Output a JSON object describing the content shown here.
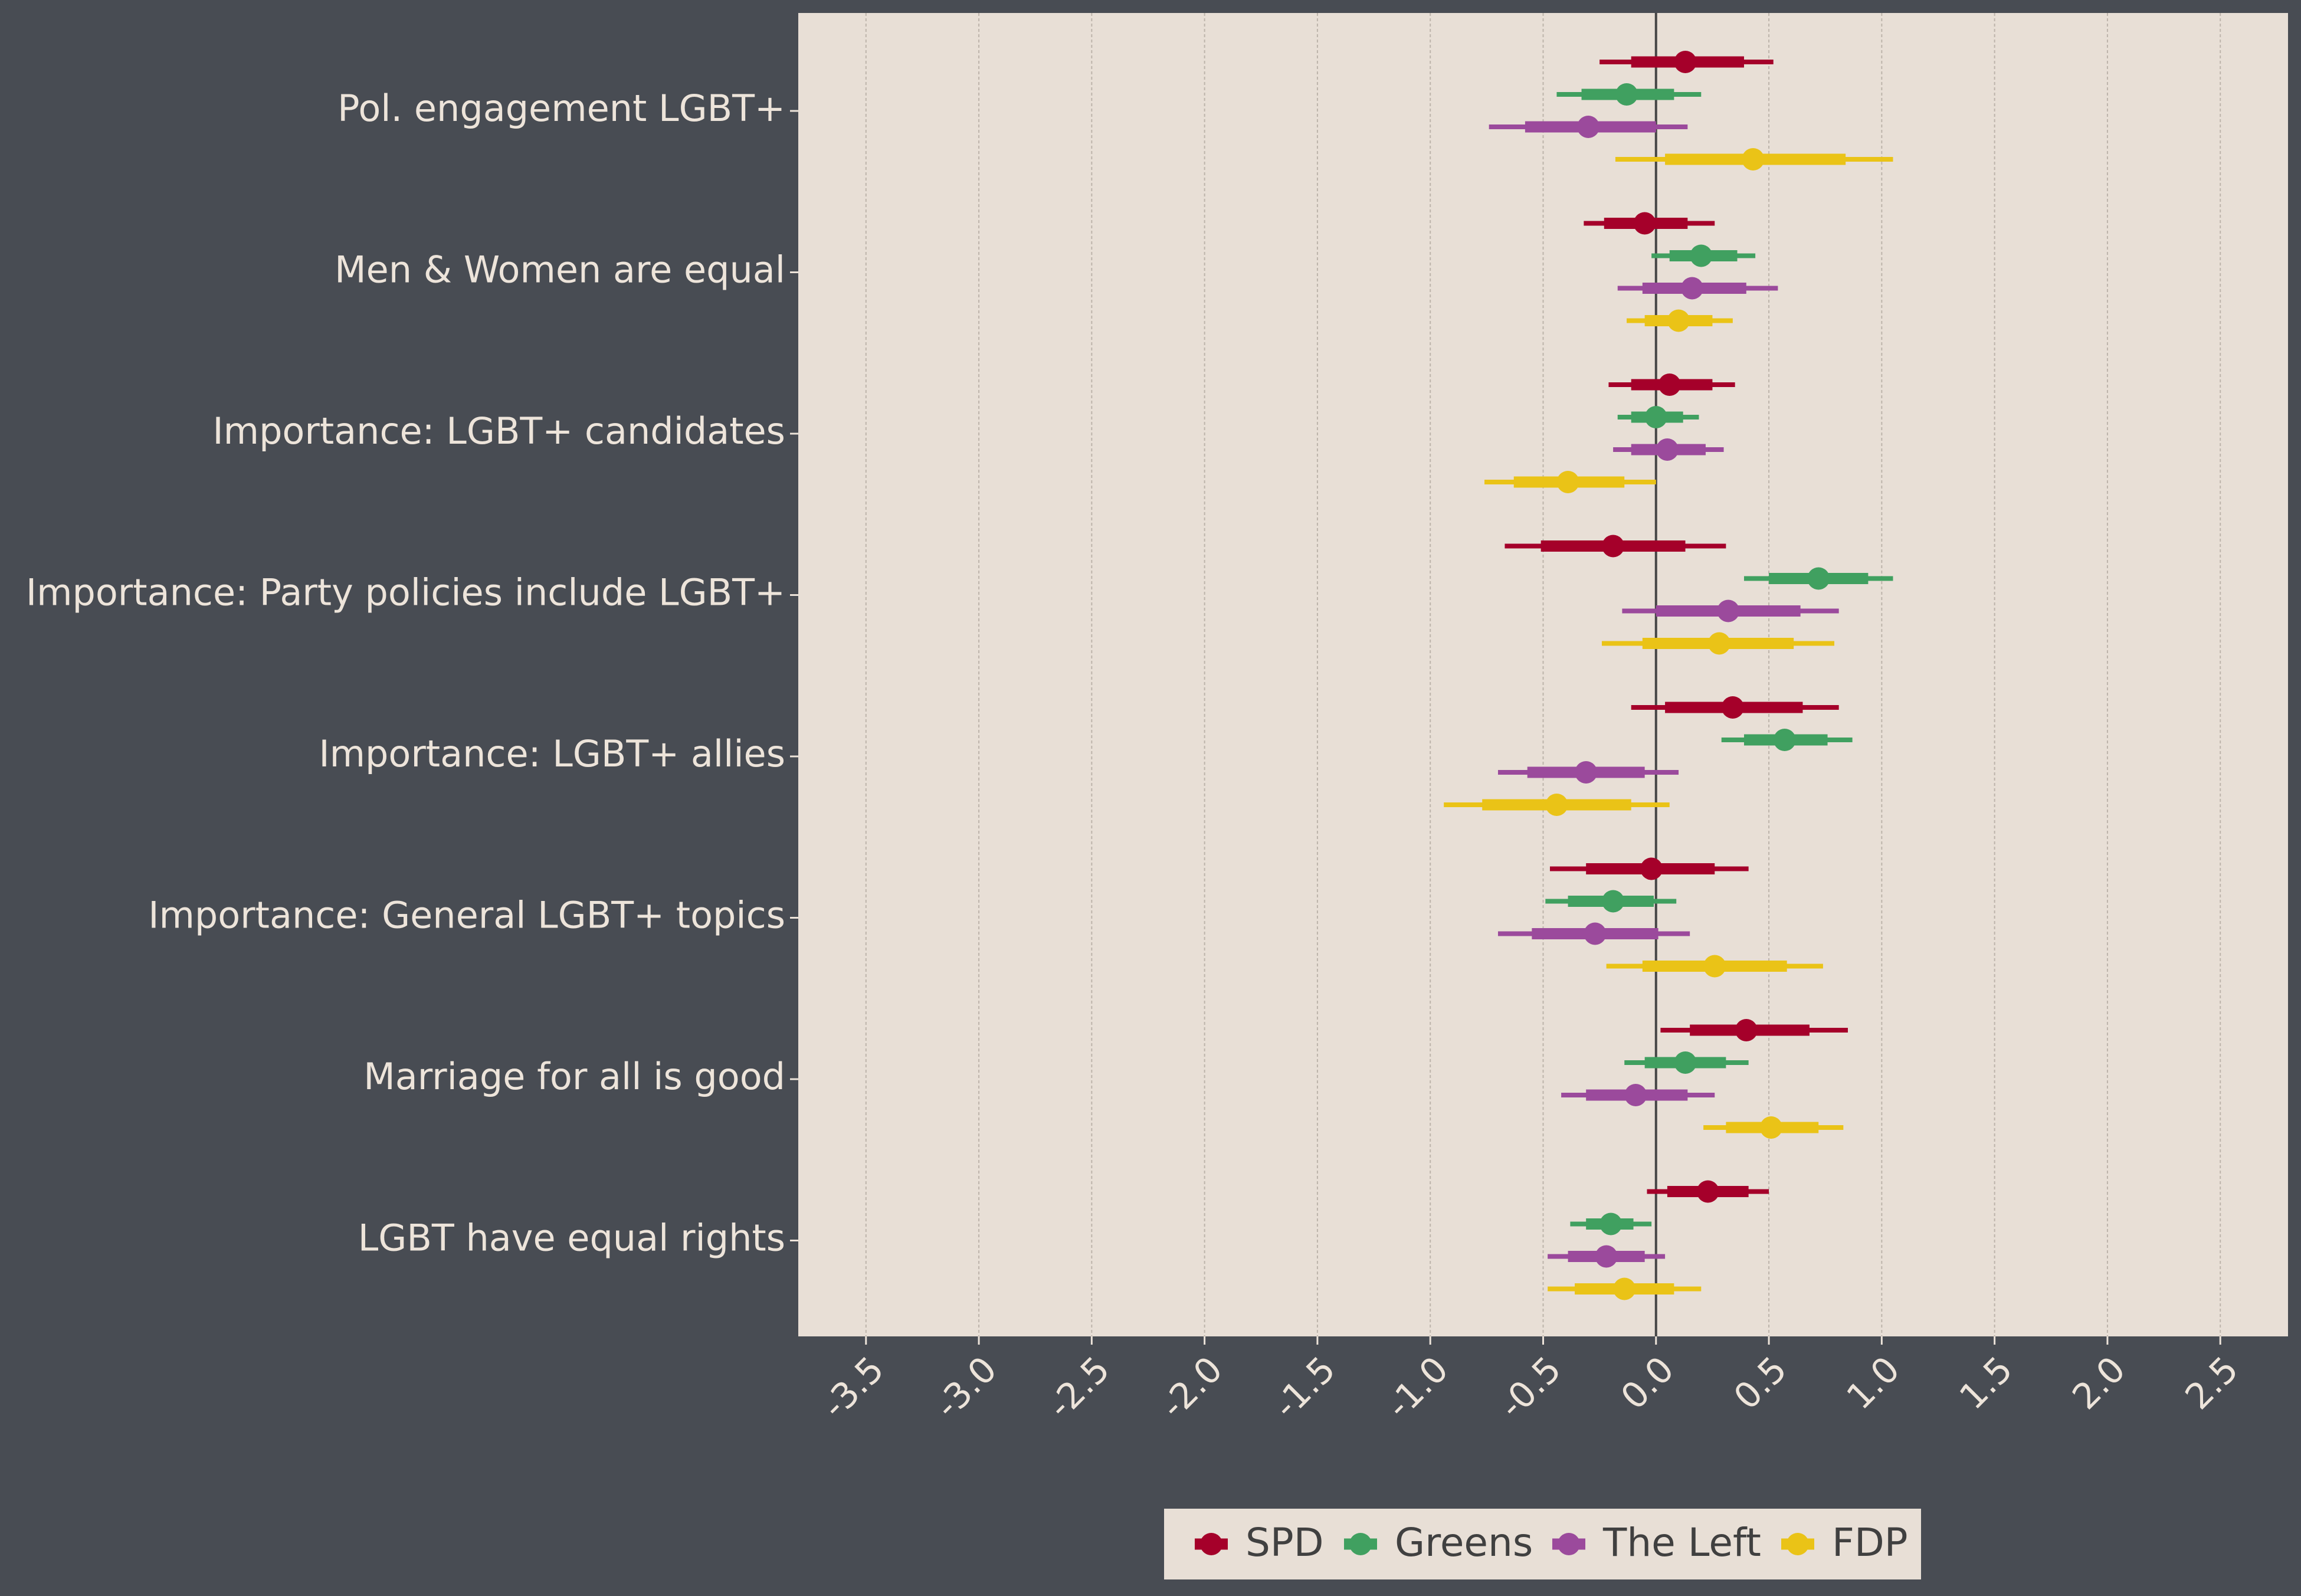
{
  "chart_data": {
    "type": "forest",
    "categories": [
      "Pol. engagement LGBT+",
      "Men & Women are equal",
      "Importance: LGBT+ candidates",
      "Importance: Party policies include LGBT+",
      "Importance: LGBT+ allies",
      "Importance: General LGBT+ topics",
      "Marriage for all is good",
      "LGBT have equal rights"
    ],
    "x_ticks": [
      "-3.5",
      "-3.0",
      "-2.5",
      "-2.0",
      "-1.5",
      "-1.0",
      "-0.5",
      "0.0",
      "0.5",
      "1.0",
      "1.5",
      "2.0",
      "2.5"
    ],
    "xlim": [
      -3.8,
      2.8
    ],
    "reference_line": 0,
    "grid": "vertical",
    "legend_position": "bottom",
    "colors": {
      "background": "#484c53",
      "panel": "#e8dfd6",
      "text": "#ede4da",
      "SPD": "#a5002a",
      "Greens": "#40a060",
      "The Left": "#9b4a9c",
      "FDP": "#eac317"
    },
    "series": [
      {
        "name": "SPD",
        "estimates": [
          0.13,
          -0.05,
          0.06,
          -0.19,
          0.34,
          -0.02,
          0.4,
          0.23
        ],
        "inner": [
          [
            -0.11,
            0.39
          ],
          [
            -0.23,
            0.14
          ],
          [
            -0.11,
            0.25
          ],
          [
            -0.51,
            0.13
          ],
          [
            0.04,
            0.65
          ],
          [
            -0.31,
            0.26
          ],
          [
            0.15,
            0.68
          ],
          [
            0.05,
            0.41
          ]
        ],
        "outer": [
          [
            -0.25,
            0.52
          ],
          [
            -0.32,
            0.26
          ],
          [
            -0.21,
            0.35
          ],
          [
            -0.67,
            0.31
          ],
          [
            -0.11,
            0.81
          ],
          [
            -0.47,
            0.41
          ],
          [
            0.02,
            0.85
          ],
          [
            -0.04,
            0.5
          ]
        ]
      },
      {
        "name": "Greens",
        "estimates": [
          -0.13,
          0.2,
          0.0,
          0.72,
          0.57,
          -0.19,
          0.13,
          -0.2
        ],
        "inner": [
          [
            -0.33,
            0.08
          ],
          [
            0.06,
            0.36
          ],
          [
            -0.11,
            0.12
          ],
          [
            0.5,
            0.94
          ],
          [
            0.39,
            0.76
          ],
          [
            -0.39,
            -0.01
          ],
          [
            -0.05,
            0.31
          ],
          [
            -0.31,
            -0.1
          ]
        ],
        "outer": [
          [
            -0.44,
            0.2
          ],
          [
            -0.02,
            0.44
          ],
          [
            -0.17,
            0.19
          ],
          [
            0.39,
            1.05
          ],
          [
            0.29,
            0.87
          ],
          [
            -0.49,
            0.09
          ],
          [
            -0.14,
            0.41
          ],
          [
            -0.38,
            -0.02
          ]
        ]
      },
      {
        "name": "The Left",
        "estimates": [
          -0.3,
          0.16,
          0.05,
          0.32,
          -0.31,
          -0.27,
          -0.09,
          -0.22
        ],
        "inner": [
          [
            -0.58,
            0.0
          ],
          [
            -0.06,
            0.4
          ],
          [
            -0.11,
            0.22
          ],
          [
            0.0,
            0.64
          ],
          [
            -0.57,
            -0.05
          ],
          [
            -0.55,
            0.01
          ],
          [
            -0.31,
            0.14
          ],
          [
            -0.39,
            -0.05
          ]
        ],
        "outer": [
          [
            -0.74,
            0.14
          ],
          [
            -0.17,
            0.54
          ],
          [
            -0.19,
            0.3
          ],
          [
            -0.15,
            0.81
          ],
          [
            -0.7,
            0.1
          ],
          [
            -0.7,
            0.15
          ],
          [
            -0.42,
            0.26
          ],
          [
            -0.48,
            0.04
          ]
        ]
      },
      {
        "name": "FDP",
        "estimates": [
          0.43,
          0.1,
          -0.39,
          0.28,
          -0.44,
          0.26,
          0.51,
          -0.14
        ],
        "inner": [
          [
            0.04,
            0.84
          ],
          [
            -0.05,
            0.25
          ],
          [
            -0.63,
            -0.14
          ],
          [
            -0.06,
            0.61
          ],
          [
            -0.77,
            -0.11
          ],
          [
            -0.06,
            0.58
          ],
          [
            0.31,
            0.72
          ],
          [
            -0.36,
            0.08
          ]
        ],
        "outer": [
          [
            -0.18,
            1.05
          ],
          [
            -0.13,
            0.34
          ],
          [
            -0.76,
            0.0
          ],
          [
            -0.24,
            0.79
          ],
          [
            -0.94,
            0.06
          ],
          [
            -0.22,
            0.74
          ],
          [
            0.21,
            0.83
          ],
          [
            -0.48,
            0.2
          ]
        ]
      }
    ]
  }
}
